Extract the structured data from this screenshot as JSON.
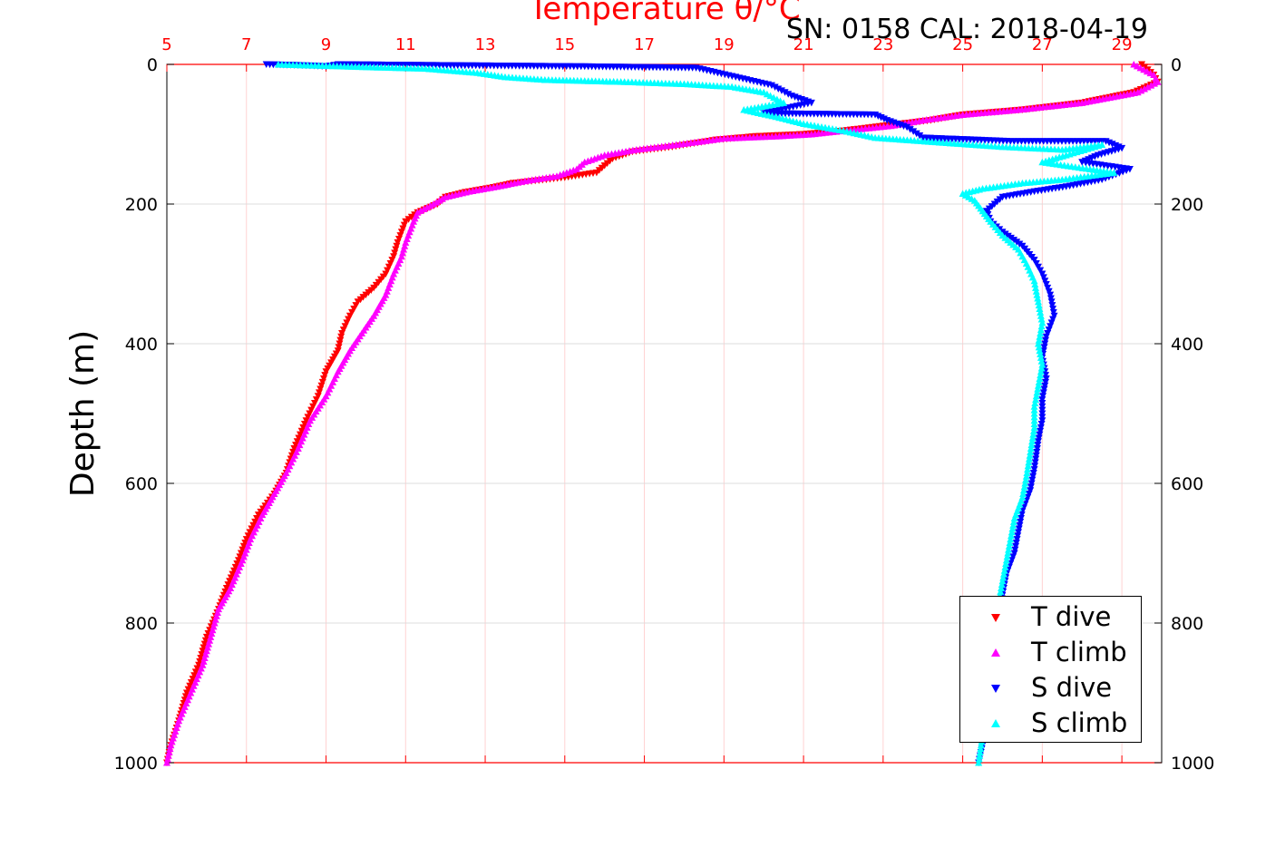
{
  "chart_data": {
    "type": "scatter",
    "title": "Temperature θ/°C",
    "subtitle": "SN: 0158  CAL: 2018-04-19",
    "ylabel": "Depth (m)",
    "ylim": [
      0,
      1000
    ],
    "y_reversed": true,
    "temperature_axis": {
      "range": [
        5,
        30
      ],
      "ticks": [
        "5",
        "7",
        "9",
        "11",
        "13",
        "15",
        "17",
        "19",
        "21",
        "23",
        "25",
        "27",
        "29"
      ],
      "color": "#ff0000",
      "position": "top"
    },
    "y_ticks_left": [
      "0",
      "200",
      "400",
      "600",
      "800",
      "1000"
    ],
    "y_ticks_right": [
      "0",
      "200",
      "400",
      "600",
      "800",
      "1000"
    ],
    "grid": true,
    "legend_position": "bottom-right",
    "series": [
      {
        "name": "T dive",
        "marker": "triangle-down",
        "color": "#ff0000",
        "axis": "temperature",
        "points": [
          [
            29.5,
            0
          ],
          [
            29.8,
            15
          ],
          [
            29.9,
            25
          ],
          [
            29.3,
            40
          ],
          [
            28.0,
            55
          ],
          [
            26.5,
            65
          ],
          [
            25.0,
            72
          ],
          [
            24.2,
            80
          ],
          [
            23.0,
            88
          ],
          [
            22.0,
            95
          ],
          [
            21.0,
            100
          ],
          [
            19.8,
            103
          ],
          [
            18.8,
            108
          ],
          [
            17.7,
            118
          ],
          [
            16.7,
            125
          ],
          [
            16.2,
            135
          ],
          [
            16.0,
            145
          ],
          [
            15.8,
            155
          ],
          [
            15.0,
            162
          ],
          [
            13.7,
            170
          ],
          [
            13.2,
            176
          ],
          [
            12.5,
            183
          ],
          [
            12.0,
            190
          ],
          [
            11.8,
            200
          ],
          [
            11.3,
            212
          ],
          [
            11.0,
            225
          ],
          [
            10.9,
            240
          ],
          [
            10.8,
            255
          ],
          [
            10.7,
            275
          ],
          [
            10.5,
            300
          ],
          [
            10.2,
            320
          ],
          [
            9.8,
            340
          ],
          [
            9.6,
            360
          ],
          [
            9.4,
            385
          ],
          [
            9.3,
            410
          ],
          [
            9.0,
            440
          ],
          [
            8.8,
            475
          ],
          [
            8.5,
            510
          ],
          [
            8.2,
            550
          ],
          [
            8.0,
            585
          ],
          [
            7.7,
            615
          ],
          [
            7.3,
            645
          ],
          [
            7.0,
            680
          ],
          [
            6.8,
            710
          ],
          [
            6.5,
            750
          ],
          [
            6.3,
            780
          ],
          [
            6.0,
            820
          ],
          [
            5.8,
            860
          ],
          [
            5.5,
            900
          ],
          [
            5.3,
            940
          ],
          [
            5.1,
            975
          ],
          [
            5.0,
            1000
          ]
        ]
      },
      {
        "name": "T climb",
        "marker": "triangle-up",
        "color": "#ff00ff",
        "axis": "temperature",
        "points": [
          [
            29.3,
            0
          ],
          [
            29.8,
            15
          ],
          [
            29.9,
            25
          ],
          [
            29.4,
            40
          ],
          [
            28.0,
            55
          ],
          [
            26.4,
            65
          ],
          [
            25.0,
            72
          ],
          [
            24.0,
            80
          ],
          [
            23.2,
            88
          ],
          [
            22.0,
            95
          ],
          [
            21.2,
            100
          ],
          [
            20.3,
            103
          ],
          [
            19.0,
            106
          ],
          [
            17.8,
            115
          ],
          [
            16.8,
            122
          ],
          [
            16.0,
            130
          ],
          [
            15.5,
            140
          ],
          [
            15.3,
            150
          ],
          [
            14.8,
            160
          ],
          [
            14.0,
            167
          ],
          [
            13.3,
            175
          ],
          [
            12.6,
            182
          ],
          [
            12.0,
            190
          ],
          [
            11.7,
            200
          ],
          [
            11.3,
            212
          ],
          [
            11.2,
            225
          ],
          [
            11.1,
            240
          ],
          [
            11.0,
            255
          ],
          [
            10.9,
            275
          ],
          [
            10.7,
            300
          ],
          [
            10.5,
            330
          ],
          [
            10.2,
            360
          ],
          [
            9.9,
            385
          ],
          [
            9.6,
            410
          ],
          [
            9.3,
            440
          ],
          [
            9.0,
            475
          ],
          [
            8.6,
            510
          ],
          [
            8.3,
            550
          ],
          [
            8.0,
            585
          ],
          [
            7.7,
            615
          ],
          [
            7.4,
            645
          ],
          [
            7.1,
            680
          ],
          [
            6.9,
            710
          ],
          [
            6.6,
            750
          ],
          [
            6.3,
            780
          ],
          [
            6.1,
            820
          ],
          [
            5.9,
            860
          ],
          [
            5.6,
            900
          ],
          [
            5.3,
            940
          ],
          [
            5.1,
            975
          ],
          [
            5.0,
            1000
          ]
        ]
      },
      {
        "name": "S dive",
        "marker": "triangle-down",
        "color": "#0000ff",
        "axis": "temperature",
        "points": [
          [
            7.5,
            0
          ],
          [
            8.2,
            1
          ],
          [
            8.7,
            2
          ],
          [
            9.0,
            3
          ],
          [
            9.3,
            0
          ],
          [
            15.5,
            3
          ],
          [
            18.3,
            5
          ],
          [
            20.2,
            30
          ],
          [
            20.7,
            45
          ],
          [
            21.2,
            55
          ],
          [
            20.0,
            70
          ],
          [
            22.8,
            72
          ],
          [
            23.1,
            80
          ],
          [
            23.6,
            90
          ],
          [
            24.0,
            105
          ],
          [
            26.2,
            110
          ],
          [
            28.6,
            110
          ],
          [
            29.0,
            120
          ],
          [
            28.4,
            130
          ],
          [
            28.0,
            140
          ],
          [
            29.2,
            150
          ],
          [
            28.5,
            165
          ],
          [
            27.6,
            175
          ],
          [
            26.8,
            182
          ],
          [
            26.0,
            190
          ],
          [
            25.8,
            200
          ],
          [
            25.6,
            210
          ],
          [
            25.7,
            225
          ],
          [
            26.0,
            240
          ],
          [
            26.5,
            260
          ],
          [
            26.8,
            280
          ],
          [
            27.0,
            300
          ],
          [
            27.2,
            330
          ],
          [
            27.3,
            360
          ],
          [
            27.1,
            390
          ],
          [
            27.0,
            420
          ],
          [
            27.1,
            450
          ],
          [
            27.0,
            480
          ],
          [
            27.0,
            510
          ],
          [
            26.9,
            540
          ],
          [
            26.8,
            580
          ],
          [
            26.7,
            610
          ],
          [
            26.5,
            640
          ],
          [
            26.4,
            670
          ],
          [
            26.3,
            700
          ],
          [
            26.1,
            730
          ],
          [
            26.0,
            760
          ],
          [
            25.9,
            800
          ],
          [
            25.8,
            850
          ],
          [
            25.7,
            900
          ],
          [
            25.6,
            950
          ],
          [
            25.4,
            1000
          ]
        ]
      },
      {
        "name": "S climb",
        "marker": "triangle-up",
        "color": "#00ffff",
        "axis": "temperature",
        "points": [
          [
            7.8,
            0
          ],
          [
            9.0,
            2
          ],
          [
            10.2,
            4
          ],
          [
            11.5,
            6
          ],
          [
            12.8,
            12
          ],
          [
            13.5,
            18
          ],
          [
            14.5,
            22
          ],
          [
            16.5,
            25
          ],
          [
            18.0,
            28
          ],
          [
            19.2,
            32
          ],
          [
            20.0,
            40
          ],
          [
            20.5,
            55
          ],
          [
            19.5,
            65
          ],
          [
            20.3,
            75
          ],
          [
            21.0,
            85
          ],
          [
            22.0,
            95
          ],
          [
            22.8,
            105
          ],
          [
            24.5,
            112
          ],
          [
            26.0,
            118
          ],
          [
            27.5,
            122
          ],
          [
            28.5,
            115
          ],
          [
            27.6,
            130
          ],
          [
            27.0,
            140
          ],
          [
            28.2,
            150
          ],
          [
            28.8,
            155
          ],
          [
            27.5,
            165
          ],
          [
            26.5,
            170
          ],
          [
            25.5,
            178
          ],
          [
            25.0,
            185
          ],
          [
            25.3,
            195
          ],
          [
            25.5,
            210
          ],
          [
            25.7,
            225
          ],
          [
            26.0,
            245
          ],
          [
            26.4,
            265
          ],
          [
            26.6,
            285
          ],
          [
            26.8,
            310
          ],
          [
            26.9,
            340
          ],
          [
            27.0,
            370
          ],
          [
            26.9,
            400
          ],
          [
            27.0,
            430
          ],
          [
            26.9,
            460
          ],
          [
            26.8,
            490
          ],
          [
            26.8,
            520
          ],
          [
            26.7,
            555
          ],
          [
            26.6,
            590
          ],
          [
            26.5,
            620
          ],
          [
            26.3,
            650
          ],
          [
            26.2,
            680
          ],
          [
            26.1,
            710
          ],
          [
            26.0,
            740
          ],
          [
            25.9,
            770
          ],
          [
            25.8,
            810
          ],
          [
            25.7,
            860
          ],
          [
            25.6,
            910
          ],
          [
            25.5,
            960
          ],
          [
            25.4,
            1000
          ]
        ]
      }
    ]
  }
}
